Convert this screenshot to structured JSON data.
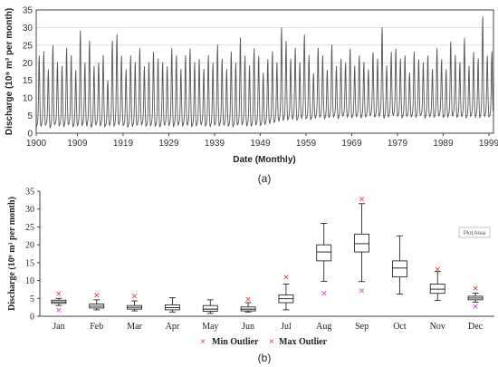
{
  "chart_data": [
    {
      "type": "line",
      "panel_caption": "(a)",
      "xlabel": "Date (Monthly)",
      "ylabel": "Discharge (10⁹ m³ per month)",
      "ylim": [
        0,
        35
      ],
      "y_ticks": [
        "0",
        "5",
        "10",
        "15",
        "20",
        "25",
        "30",
        "35"
      ],
      "x_ticks": [
        "1900",
        "1909",
        "1919",
        "1929",
        "1939",
        "1949",
        "1959",
        "1969",
        "1979",
        "1989",
        "1999"
      ],
      "x_range": [
        1900,
        2000
      ],
      "grid": "horizontal",
      "line_color": "#555555",
      "annual_peaks": [
        22,
        23,
        18,
        25,
        20,
        19,
        24,
        22,
        18,
        29,
        20,
        26,
        19,
        20,
        22,
        15,
        26,
        28,
        22,
        18,
        22,
        20,
        24,
        19,
        20,
        23,
        21,
        20,
        19,
        24,
        22,
        18,
        22,
        24,
        20,
        21,
        18,
        22,
        20,
        25,
        21,
        18,
        23,
        20,
        27,
        22,
        19,
        24,
        22,
        17,
        21,
        23,
        20,
        30,
        26,
        21,
        24,
        20,
        28,
        22,
        17,
        24,
        22,
        18,
        25,
        19,
        21,
        20,
        24,
        19,
        22,
        20,
        18,
        23,
        21,
        30,
        19,
        23,
        24,
        21,
        22,
        17,
        23,
        21,
        20,
        22,
        18,
        24,
        21,
        18,
        26,
        22,
        20,
        27,
        19,
        23,
        21,
        33,
        22,
        23
      ],
      "annual_lows": [
        1.8,
        2.0,
        2.2,
        1.5,
        2.3,
        2.1,
        1.9,
        2.4,
        1.8,
        2.0,
        2.2,
        2.1,
        1.7,
        2.3,
        2.0,
        1.9,
        2.2,
        2.0,
        2.4,
        2.1,
        1.8,
        2.0,
        2.2,
        2.3,
        1.9,
        2.1,
        2.0,
        1.8,
        2.2,
        2.1,
        1.9,
        2.3,
        2.0,
        2.2,
        1.8,
        2.1,
        2.4,
        2.0,
        1.9,
        2.2,
        2.1,
        2.3,
        2.0,
        1.8,
        2.2,
        2.4,
        2.1,
        2.0,
        2.3,
        2.1,
        2.5,
        2.8,
        3.0,
        3.4,
        3.6,
        3.8,
        4.0,
        3.7,
        4.2,
        4.0,
        3.9,
        4.3,
        4.5,
        4.1,
        4.4,
        4.6,
        4.2,
        4.8,
        4.5,
        4.3,
        4.7,
        4.4,
        4.6,
        4.9,
        4.5,
        4.8,
        4.3,
        4.6,
        5.0,
        4.7,
        4.4,
        4.8,
        4.6,
        4.5,
        4.9,
        4.3,
        4.7,
        4.5,
        4.8,
        4.4,
        4.6,
        4.9,
        4.5,
        4.7,
        4.3,
        4.8,
        4.6,
        4.4,
        4.7,
        4.5
      ]
    },
    {
      "type": "box",
      "panel_caption": "(b)",
      "ylabel": "Discharge (10⁹ m³ per month)",
      "ylim": [
        0,
        35
      ],
      "y_ticks": [
        "0",
        "5",
        "10",
        "15",
        "20",
        "25",
        "30",
        "35"
      ],
      "categories": [
        "Jan",
        "Feb",
        "Mar",
        "Apr",
        "May",
        "Jun",
        "Jul",
        "Aug",
        "Sep",
        "Oct",
        "Nov",
        "Dec"
      ],
      "boxes": [
        {
          "min": 3.0,
          "q1": 3.6,
          "median": 4.0,
          "q3": 4.5,
          "max": 5.0,
          "min_outlier": 1.8,
          "max_outlier": 6.4
        },
        {
          "min": 1.8,
          "q1": 2.3,
          "median": 2.8,
          "q3": 3.4,
          "max": 4.6,
          "max_outlier": 6.0
        },
        {
          "min": 1.5,
          "q1": 2.0,
          "median": 2.5,
          "q3": 3.0,
          "max": 4.3,
          "max_outlier": 5.7
        },
        {
          "min": 1.2,
          "q1": 1.8,
          "median": 2.4,
          "q3": 3.2,
          "max": 5.2
        },
        {
          "min": 0.8,
          "q1": 1.4,
          "median": 2.0,
          "q3": 3.0,
          "max": 4.6
        },
        {
          "min": 1.2,
          "q1": 1.5,
          "median": 2.0,
          "q3": 2.6,
          "max": 3.8,
          "max_outlier": 4.8
        },
        {
          "min": 1.8,
          "q1": 3.8,
          "median": 4.9,
          "q3": 6.0,
          "max": 9.0,
          "max_outlier": 11.0
        },
        {
          "min": 9.8,
          "q1": 15.5,
          "median": 18.0,
          "q3": 20.0,
          "max": 26.0,
          "min_outlier": 6.5
        },
        {
          "min": 9.7,
          "q1": 18.0,
          "median": 20.3,
          "q3": 23.0,
          "max": 31.5,
          "min_outlier": 7.2,
          "max_outlier": 32.8
        },
        {
          "min": 6.2,
          "q1": 11.0,
          "median": 13.5,
          "q3": 15.5,
          "max": 22.5
        },
        {
          "min": 4.4,
          "q1": 6.4,
          "median": 7.6,
          "q3": 9.0,
          "max": 12.5,
          "max_outlier": 13.2
        },
        {
          "min": 3.9,
          "q1": 4.6,
          "median": 5.1,
          "q3": 5.6,
          "max": 6.5,
          "min_outlier": 2.8,
          "max_outlier": 7.8
        }
      ],
      "legend": [
        {
          "symbol": "×",
          "label": "Min Outlier",
          "color": "#cc33cc"
        },
        {
          "symbol": "×",
          "label": "Max Outlier",
          "color": "#e03030"
        }
      ],
      "legend_placement": "bottom-center",
      "tooltip": "Plot Area"
    }
  ]
}
